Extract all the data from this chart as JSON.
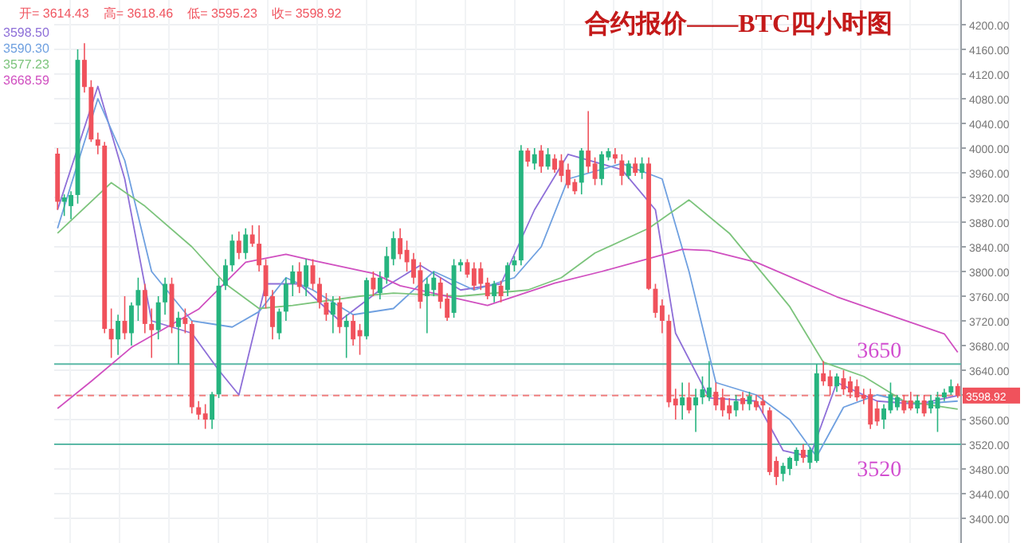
{
  "chart_data": {
    "type": "candlestick",
    "title": "合约报价——BTC四小时图",
    "annotations": [
      "开= 3614.43",
      "高= 3618.46",
      "低= 3595.23",
      "收= 3598.92"
    ],
    "categories": [
      null,
      null,
      null,
      null,
      null,
      null,
      null,
      null,
      null,
      null,
      null,
      null,
      null,
      null,
      null,
      null,
      null,
      null,
      null,
      null,
      null,
      null,
      null,
      null,
      null,
      null,
      null,
      null,
      null,
      null,
      null,
      null,
      null,
      null,
      null,
      null,
      null,
      null,
      null,
      null,
      null,
      null,
      null,
      null,
      null,
      null,
      null,
      null,
      null,
      null,
      null,
      null,
      null,
      null,
      null,
      null,
      null,
      null,
      null,
      null,
      null,
      null,
      null,
      null,
      null,
      null,
      null,
      null,
      null,
      null,
      null,
      null,
      null,
      null,
      null,
      null,
      null,
      null,
      null,
      null,
      null,
      null,
      null,
      null,
      null,
      null,
      null,
      null,
      null,
      null,
      null,
      null,
      null,
      null,
      null,
      null,
      null,
      null,
      null,
      null,
      null,
      null,
      null,
      null,
      null,
      null,
      null,
      null,
      null,
      null,
      null,
      null,
      null,
      null,
      null,
      null,
      null,
      null,
      null,
      null,
      null,
      null,
      null,
      null,
      null,
      null,
      null,
      null,
      null,
      null,
      null,
      null,
      null,
      null,
      null
    ],
    "ohlc": [
      [
        3991,
        4000,
        3900,
        3913
      ],
      [
        3913,
        3925,
        3890,
        3920
      ],
      [
        3906,
        3930,
        3885,
        3924
      ],
      [
        3924,
        4160,
        3910,
        4143
      ],
      [
        4143,
        4170,
        4090,
        4099
      ],
      [
        4099,
        4110,
        4010,
        4014
      ],
      [
        4014,
        4025,
        3990,
        4004
      ],
      [
        4004,
        4010,
        3700,
        3707
      ],
      [
        3707,
        3740,
        3660,
        3690
      ],
      [
        3690,
        3730,
        3665,
        3720
      ],
      [
        3720,
        3760,
        3690,
        3700
      ],
      [
        3700,
        3750,
        3680,
        3745
      ],
      [
        3745,
        3790,
        3720,
        3770
      ],
      [
        3770,
        3780,
        3700,
        3715
      ],
      [
        3715,
        3740,
        3660,
        3705
      ],
      [
        3705,
        3760,
        3690,
        3750
      ],
      [
        3750,
        3790,
        3730,
        3780
      ],
      [
        3780,
        3790,
        3700,
        3710
      ],
      [
        3710,
        3735,
        3650,
        3725
      ],
      [
        3725,
        3740,
        3700,
        3715
      ],
      [
        3715,
        3720,
        3570,
        3580
      ],
      [
        3580,
        3590,
        3560,
        3568
      ],
      [
        3570,
        3585,
        3545,
        3560
      ],
      [
        3560,
        3605,
        3545,
        3601
      ],
      [
        3601,
        3790,
        3595,
        3777
      ],
      [
        3777,
        3820,
        3770,
        3810
      ],
      [
        3810,
        3860,
        3800,
        3850
      ],
      [
        3850,
        3865,
        3820,
        3830
      ],
      [
        3830,
        3870,
        3820,
        3860
      ],
      [
        3860,
        3875,
        3840,
        3845
      ],
      [
        3845,
        3875,
        3800,
        3810
      ],
      [
        3810,
        3820,
        3740,
        3760
      ],
      [
        3760,
        3770,
        3690,
        3710
      ],
      [
        3700,
        3740,
        3690,
        3735
      ],
      [
        3735,
        3790,
        3720,
        3780
      ],
      [
        3780,
        3810,
        3760,
        3800
      ],
      [
        3800,
        3815,
        3765,
        3775
      ],
      [
        3775,
        3820,
        3760,
        3810
      ],
      [
        3810,
        3820,
        3770,
        3780
      ],
      [
        3780,
        3790,
        3740,
        3750
      ],
      [
        3750,
        3765,
        3720,
        3730
      ],
      [
        3730,
        3760,
        3700,
        3750
      ],
      [
        3750,
        3760,
        3700,
        3710
      ],
      [
        3710,
        3730,
        3660,
        3720
      ],
      [
        3720,
        3730,
        3680,
        3690
      ],
      [
        3705,
        3715,
        3665,
        3695
      ],
      [
        3695,
        3790,
        3690,
        3786
      ],
      [
        3790,
        3800,
        3760,
        3771
      ],
      [
        3765,
        3800,
        3755,
        3790
      ],
      [
        3790,
        3840,
        3780,
        3825
      ],
      [
        3820,
        3865,
        3810,
        3854
      ],
      [
        3854,
        3870,
        3820,
        3828
      ],
      [
        3835,
        3850,
        3800,
        3815
      ],
      [
        3820,
        3830,
        3780,
        3790
      ],
      [
        3802,
        3815,
        3740,
        3751
      ],
      [
        3760,
        3790,
        3700,
        3780
      ],
      [
        3770,
        3800,
        3760,
        3790
      ],
      [
        3782,
        3790,
        3740,
        3751
      ],
      [
        3756,
        3765,
        3720,
        3725
      ],
      [
        3733,
        3820,
        3725,
        3810
      ],
      [
        3810,
        3820,
        3800,
        3815
      ],
      [
        3815,
        3820,
        3790,
        3795
      ],
      [
        3805,
        3815,
        3770,
        3777
      ],
      [
        3805,
        3815,
        3770,
        3780
      ],
      [
        3782,
        3790,
        3755,
        3760
      ],
      [
        3760,
        3785,
        3750,
        3780
      ],
      [
        3777,
        3785,
        3750,
        3760
      ],
      [
        3770,
        3815,
        3760,
        3810
      ],
      [
        3810,
        3825,
        3800,
        3818
      ],
      [
        3818,
        4005,
        3810,
        3996
      ],
      [
        3996,
        4000,
        3970,
        3978
      ],
      [
        3975,
        4000,
        3965,
        3990
      ],
      [
        3996,
        4005,
        3960,
        3970
      ],
      [
        3970,
        4000,
        3965,
        3990
      ],
      [
        3983,
        3990,
        3960,
        3965
      ],
      [
        3980,
        3990,
        3945,
        3955
      ],
      [
        3965,
        3975,
        3935,
        3940
      ],
      [
        3945,
        3950,
        3925,
        3930
      ],
      [
        3944,
        4000,
        3925,
        3996
      ],
      [
        3996,
        4060,
        3960,
        3970
      ],
      [
        3975,
        3985,
        3940,
        3950
      ],
      [
        3950,
        3995,
        3940,
        3990
      ],
      [
        3985,
        4000,
        3980,
        3995
      ],
      [
        3990,
        4000,
        3975,
        3983
      ],
      [
        3980,
        3990,
        3940,
        3955
      ],
      [
        3955,
        3980,
        3950,
        3975
      ],
      [
        3975,
        3985,
        3955,
        3960
      ],
      [
        3960,
        3985,
        3950,
        3975
      ],
      [
        3975,
        3985,
        3770,
        3772
      ],
      [
        3772,
        3780,
        3725,
        3733
      ],
      [
        3745,
        3755,
        3700,
        3720
      ],
      [
        3720,
        3730,
        3580,
        3588
      ],
      [
        3594,
        3610,
        3560,
        3583
      ],
      [
        3583,
        3620,
        3560,
        3596
      ],
      [
        3596,
        3620,
        3570,
        3575
      ],
      [
        3583,
        3610,
        3540,
        3596
      ],
      [
        3596,
        3630,
        3585,
        3609
      ],
      [
        3596,
        3655,
        3590,
        3612
      ],
      [
        3605,
        3620,
        3575,
        3583
      ],
      [
        3596,
        3610,
        3565,
        3575
      ],
      [
        3583,
        3595,
        3560,
        3570
      ],
      [
        3575,
        3600,
        3565,
        3590
      ],
      [
        3595,
        3605,
        3575,
        3585
      ],
      [
        3585,
        3605,
        3575,
        3598
      ],
      [
        3590,
        3600,
        3575,
        3580
      ],
      [
        3590,
        3600,
        3570,
        3583
      ],
      [
        3575,
        3580,
        3470,
        3475
      ],
      [
        3493,
        3500,
        3454,
        3467
      ],
      [
        3472,
        3490,
        3460,
        3485
      ],
      [
        3480,
        3500,
        3470,
        3498
      ],
      [
        3493,
        3515,
        3485,
        3511
      ],
      [
        3511,
        3520,
        3490,
        3498
      ],
      [
        3490,
        3515,
        3480,
        3511
      ],
      [
        3493,
        3650,
        3490,
        3635
      ],
      [
        3635,
        3655,
        3615,
        3622
      ],
      [
        3630,
        3640,
        3600,
        3614
      ],
      [
        3614,
        3635,
        3605,
        3630
      ],
      [
        3627,
        3640,
        3600,
        3609
      ],
      [
        3622,
        3630,
        3595,
        3604
      ],
      [
        3614,
        3625,
        3590,
        3596
      ],
      [
        3600,
        3610,
        3585,
        3594
      ],
      [
        3601,
        3610,
        3545,
        3552
      ],
      [
        3578,
        3590,
        3550,
        3557
      ],
      [
        3560,
        3585,
        3545,
        3578
      ],
      [
        3575,
        3620,
        3570,
        3601
      ],
      [
        3580,
        3600,
        3575,
        3596
      ],
      [
        3591,
        3600,
        3570,
        3575
      ],
      [
        3591,
        3605,
        3575,
        3578
      ],
      [
        3578,
        3600,
        3570,
        3591
      ],
      [
        3591,
        3600,
        3565,
        3570
      ],
      [
        3578,
        3600,
        3570,
        3591
      ],
      [
        3578,
        3605,
        3540,
        3596
      ],
      [
        3596,
        3610,
        3590,
        3604
      ],
      [
        3604,
        3625,
        3600,
        3614
      ],
      [
        3614.43,
        3618.46,
        3595.23,
        3598.92
      ]
    ],
    "colors": [
      "#f0525c",
      "#26b47f",
      "#26b47f",
      "#26b47f",
      "#f0525c",
      "#f0525c",
      "#f0525c",
      "#f0525c",
      "#f0525c",
      "#26b47f",
      "#f0525c",
      "#26b47f",
      "#26b47f",
      "#f0525c",
      "#f0525c",
      "#26b47f",
      "#26b47f",
      "#f0525c",
      "#26b47f",
      "#f0525c",
      "#f0525c",
      "#f0525c",
      "#f0525c",
      "#26b47f",
      "#26b47f",
      "#26b47f",
      "#26b47f",
      "#f0525c",
      "#26b47f",
      "#f0525c",
      "#f0525c",
      "#f0525c",
      "#f0525c",
      "#26b47f",
      "#26b47f",
      "#26b47f",
      "#f0525c",
      "#26b47f",
      "#f0525c",
      "#f0525c",
      "#f0525c",
      "#26b47f",
      "#f0525c",
      "#26b47f",
      "#f0525c",
      "#f0525c",
      "#26b47f",
      "#f0525c",
      "#26b47f",
      "#26b47f",
      "#26b47f",
      "#f0525c",
      "#f0525c",
      "#f0525c",
      "#f0525c",
      "#26b47f",
      "#26b47f",
      "#f0525c",
      "#f0525c",
      "#26b47f",
      "#26b47f",
      "#f0525c",
      "#f0525c",
      "#f0525c",
      "#f0525c",
      "#26b47f",
      "#f0525c",
      "#26b47f",
      "#26b47f",
      "#26b47f",
      "#f0525c",
      "#26b47f",
      "#f0525c",
      "#26b47f",
      "#f0525c",
      "#f0525c",
      "#f0525c",
      "#f0525c",
      "#26b47f",
      "#f0525c",
      "#f0525c",
      "#26b47f",
      "#26b47f",
      "#f0525c",
      "#f0525c",
      "#26b47f",
      "#f0525c",
      "#26b47f",
      "#f0525c",
      "#f0525c",
      "#f0525c",
      "#f0525c",
      "#f0525c",
      "#26b47f",
      "#f0525c",
      "#26b47f",
      "#26b47f",
      "#26b47f",
      "#f0525c",
      "#f0525c",
      "#f0525c",
      "#26b47f",
      "#f0525c",
      "#26b47f",
      "#f0525c",
      "#f0525c",
      "#f0525c",
      "#f0525c",
      "#26b47f",
      "#26b47f",
      "#26b47f",
      "#f0525c",
      "#26b47f",
      "#26b47f",
      "#f0525c",
      "#f0525c",
      "#26b47f",
      "#f0525c",
      "#f0525c",
      "#f0525c",
      "#f0525c",
      "#f0525c",
      "#f0525c",
      "#26b47f",
      "#26b47f",
      "#26b47f",
      "#f0525c",
      "#f0525c",
      "#26b47f",
      "#f0525c",
      "#26b47f",
      "#26b47f",
      "#26b47f",
      "#26b47f",
      "#f0525c"
    ],
    "series": [
      {
        "name": "3598.50",
        "type": "line",
        "color": "#8e6fd8",
        "values": [
          3900,
          null,
          null,
          null,
          null,
          null,
          4100,
          null,
          null,
          null,
          3950,
          null,
          null,
          null,
          3720,
          null,
          null,
          null,
          null,
          null,
          3700,
          null,
          null,
          null,
          3640,
          null,
          null,
          3600,
          null,
          null,
          null,
          3780,
          null,
          null,
          null,
          null,
          3780,
          null,
          null,
          null,
          null,
          null,
          3720,
          null,
          null,
          null,
          null,
          null,
          3770,
          null,
          null,
          null,
          null,
          null,
          3810,
          null,
          null,
          null,
          null,
          null,
          3770,
          null,
          null,
          null,
          null,
          null,
          3780,
          null,
          null,
          null,
          null,
          3900,
          null,
          null,
          null,
          null,
          3990,
          null,
          null,
          null,
          null,
          null,
          null,
          null,
          3965,
          null,
          null,
          null,
          null,
          3900,
          null,
          null,
          3700,
          null,
          null,
          null,
          null,
          3595,
          null,
          null,
          null,
          null,
          null,
          null,
          3590,
          null,
          null,
          null,
          3510,
          null,
          null,
          null,
          3500,
          null,
          null,
          null,
          3620,
          null,
          null,
          null,
          null,
          null,
          3590,
          null,
          null,
          null,
          null,
          null,
          3585,
          null,
          null,
          null,
          null,
          null,
          3599
        ]
      },
      {
        "name": "3590.30",
        "type": "line",
        "color": "#6fa0e0",
        "values": [
          3870,
          null,
          null,
          null,
          null,
          null,
          4080,
          null,
          null,
          null,
          3980,
          null,
          null,
          null,
          3800,
          null,
          null,
          null,
          null,
          null,
          3720,
          null,
          null,
          null,
          null,
          null,
          3710,
          null,
          null,
          null,
          3735,
          null,
          null,
          null,
          3790,
          null,
          null,
          null,
          3770,
          null,
          null,
          null,
          null,
          null,
          3730,
          null,
          null,
          null,
          null,
          null,
          3740,
          null,
          null,
          null,
          null,
          null,
          3800,
          null,
          null,
          null,
          null,
          null,
          3770,
          null,
          null,
          null,
          null,
          null,
          3790,
          null,
          null,
          null,
          3840,
          null,
          null,
          null,
          3950,
          null,
          null,
          null,
          null,
          null,
          null,
          null,
          3975,
          null,
          null,
          null,
          null,
          null,
          3950,
          null,
          null,
          null,
          3800,
          null,
          null,
          null,
          3620,
          null,
          null,
          null,
          null,
          null,
          3600,
          null,
          null,
          null,
          null,
          3560,
          null,
          null,
          null,
          3500,
          null,
          null,
          null,
          3580,
          null,
          null,
          null,
          null,
          3600,
          null,
          null,
          null,
          null,
          null,
          3585,
          null,
          null,
          null,
          null,
          null,
          3590
        ]
      },
      {
        "name": "3577.23",
        "type": "line",
        "color": "#7cc47c",
        "values": [
          3862,
          null,
          null,
          null,
          null,
          null,
          null,
          null,
          3944,
          null,
          null,
          null,
          null,
          3906,
          null,
          null,
          null,
          null,
          null,
          null,
          3840,
          null,
          null,
          null,
          null,
          3780,
          null,
          null,
          null,
          null,
          3740,
          null,
          null,
          null,
          null,
          3745,
          null,
          null,
          null,
          null,
          null,
          null,
          null,
          null,
          null,
          3760,
          null,
          null,
          null,
          null,
          3765,
          null,
          null,
          null,
          null,
          null,
          null,
          null,
          null,
          null,
          3760,
          null,
          null,
          null,
          null,
          null,
          null,
          null,
          null,
          null,
          3770,
          null,
          null,
          null,
          null,
          3790,
          null,
          null,
          null,
          null,
          3830,
          null,
          null,
          null,
          null,
          null,
          null,
          null,
          3870,
          null,
          null,
          null,
          null,
          null,
          3916,
          null,
          null,
          null,
          null,
          null,
          3862,
          null,
          null,
          null,
          null,
          null,
          null,
          null,
          null,
          3743,
          null,
          null,
          null,
          null,
          3653,
          null,
          null,
          null,
          null,
          null,
          3630,
          null,
          null,
          null,
          null,
          null,
          3590,
          null,
          null,
          null,
          null,
          null,
          null,
          null,
          3577
        ]
      },
      {
        "name": "3668.59",
        "type": "line",
        "color": "#d04fc0",
        "values": [
          3578,
          null,
          null,
          null,
          null,
          3622,
          null,
          null,
          null,
          null,
          null,
          3677,
          null,
          null,
          null,
          null,
          null,
          null,
          null,
          null,
          null,
          3739,
          null,
          null,
          null,
          null,
          null,
          null,
          3815,
          null,
          null,
          null,
          null,
          null,
          3828,
          null,
          null,
          null,
          3818,
          null,
          null,
          null,
          null,
          null,
          null,
          null,
          null,
          3797,
          null,
          null,
          null,
          3777,
          null,
          null,
          null,
          null,
          null,
          null,
          null,
          null,
          null,
          null,
          null,
          null,
          3745,
          null,
          null,
          null,
          null,
          null,
          null,
          null,
          null,
          null,
          3781,
          null,
          null,
          null,
          null,
          null,
          null,
          3800,
          null,
          null,
          null,
          null,
          null,
          3818,
          null,
          null,
          null,
          null,
          null,
          3836,
          null,
          null,
          null,
          3834,
          null,
          null,
          null,
          null,
          null,
          null,
          3815,
          null,
          null,
          null,
          null,
          null,
          null,
          null,
          null,
          null,
          null,
          null,
          3759,
          null,
          null,
          null,
          null,
          null,
          null,
          null,
          null,
          3725,
          null,
          null,
          null,
          null,
          null,
          null,
          3699,
          null,
          3669
        ]
      }
    ],
    "ylim": [
      3360,
      4240
    ],
    "yticks": [
      {
        "value": 3400,
        "label": "3400.00"
      },
      {
        "value": 3440,
        "label": "3440.00"
      },
      {
        "value": 3480,
        "label": "3480.00"
      },
      {
        "value": 3520,
        "label": "3520.00"
      },
      {
        "value": 3560,
        "label": "3560.00"
      },
      {
        "value": 3600,
        "label": null
      },
      {
        "value": 3640,
        "label": "3640.00"
      },
      {
        "value": 3680,
        "label": "3680.00"
      },
      {
        "value": 3720,
        "label": "3720.00"
      },
      {
        "value": 3760,
        "label": "3760.00"
      },
      {
        "value": 3800,
        "label": "3800.00"
      },
      {
        "value": 3840,
        "label": "3840.00"
      },
      {
        "value": 3880,
        "label": "3880.00"
      },
      {
        "value": 3920,
        "label": "3920.00"
      },
      {
        "value": 3960,
        "label": "3960.00"
      },
      {
        "value": 4000,
        "label": "4000.00"
      },
      {
        "value": 4040,
        "label": "4040.00"
      },
      {
        "value": 4080,
        "label": "4080.00"
      },
      {
        "value": 4120,
        "label": "4120.00"
      },
      {
        "value": 4160,
        "label": "4160.00"
      },
      {
        "value": 4200,
        "label": "4200.00"
      }
    ],
    "ref_lines": [
      {
        "axis": "y",
        "value": 3650,
        "label": "3650",
        "color": "#5bb8a6"
      },
      {
        "axis": "y",
        "value": 3598.92,
        "label": "3598.92",
        "color": "#f08080",
        "line_style": "dashed"
      },
      {
        "axis": "y",
        "value": 3520,
        "label": "3520",
        "color": "#5bb8a6"
      }
    ],
    "grid": true,
    "legend": "top left",
    "tick_labels": "y"
  }
}
